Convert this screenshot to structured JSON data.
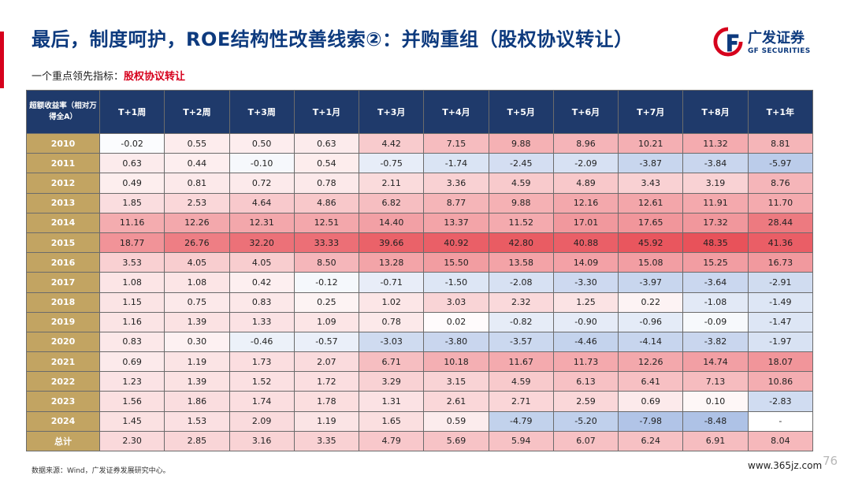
{
  "header": {
    "title": "最后，制度呵护，ROE结构性改善线索②：并购重组（股权协议转让）",
    "subtitle_prefix": "一个重点领先指标：",
    "subtitle_highlight": "股权协议转让"
  },
  "logo": {
    "name_cn": "广发证券",
    "name_en": "GF SECURITIES",
    "icon": "gf-logo-icon"
  },
  "table": {
    "corner_header": "超额收益率（相对万得全A）",
    "columns": [
      "T+1周",
      "T+2周",
      "T+3周",
      "T+1月",
      "T+3月",
      "T+4月",
      "T+5月",
      "T+6月",
      "T+7月",
      "T+8月",
      "T+1年"
    ],
    "rows": [
      {
        "label": "2010",
        "values": [
          "-0.02",
          "0.55",
          "0.50",
          "0.63",
          "4.42",
          "7.15",
          "9.88",
          "8.96",
          "10.21",
          "11.32",
          "8.81"
        ]
      },
      {
        "label": "2011",
        "values": [
          "0.63",
          "0.44",
          "-0.10",
          "0.54",
          "-0.75",
          "-1.74",
          "-2.45",
          "-2.09",
          "-3.87",
          "-3.84",
          "-5.97"
        ]
      },
      {
        "label": "2012",
        "values": [
          "0.49",
          "0.81",
          "0.72",
          "0.78",
          "2.11",
          "3.36",
          "4.59",
          "4.89",
          "3.43",
          "3.19",
          "8.76"
        ]
      },
      {
        "label": "2013",
        "values": [
          "1.85",
          "2.53",
          "4.64",
          "4.86",
          "6.82",
          "8.77",
          "9.88",
          "12.16",
          "12.61",
          "11.91",
          "11.70"
        ]
      },
      {
        "label": "2014",
        "values": [
          "11.16",
          "12.26",
          "12.31",
          "12.51",
          "14.40",
          "13.37",
          "11.52",
          "17.01",
          "17.65",
          "17.32",
          "28.44"
        ]
      },
      {
        "label": "2015",
        "values": [
          "18.77",
          "26.76",
          "32.20",
          "33.33",
          "39.66",
          "40.92",
          "42.80",
          "40.88",
          "45.92",
          "48.35",
          "41.36"
        ]
      },
      {
        "label": "2016",
        "values": [
          "3.53",
          "4.05",
          "4.05",
          "8.50",
          "13.28",
          "15.50",
          "13.58",
          "14.09",
          "15.08",
          "15.25",
          "16.73"
        ]
      },
      {
        "label": "2017",
        "values": [
          "1.08",
          "1.08",
          "0.42",
          "-0.12",
          "-0.71",
          "-1.50",
          "-2.08",
          "-3.30",
          "-3.97",
          "-3.64",
          "-2.91"
        ]
      },
      {
        "label": "2018",
        "values": [
          "1.15",
          "0.75",
          "0.83",
          "0.25",
          "1.02",
          "3.03",
          "2.32",
          "1.25",
          "0.22",
          "-1.08",
          "-1.49"
        ]
      },
      {
        "label": "2019",
        "values": [
          "1.16",
          "1.39",
          "1.33",
          "1.09",
          "0.78",
          "0.02",
          "-0.82",
          "-0.90",
          "-0.96",
          "-0.09",
          "-1.47"
        ]
      },
      {
        "label": "2020",
        "values": [
          "0.83",
          "0.30",
          "-0.46",
          "-0.57",
          "-3.03",
          "-3.80",
          "-3.57",
          "-4.46",
          "-4.14",
          "-3.82",
          "-1.97"
        ]
      },
      {
        "label": "2021",
        "values": [
          "0.69",
          "1.19",
          "1.73",
          "2.07",
          "6.71",
          "10.18",
          "11.67",
          "11.73",
          "12.26",
          "14.74",
          "18.07"
        ]
      },
      {
        "label": "2022",
        "values": [
          "1.23",
          "1.39",
          "1.52",
          "1.72",
          "3.29",
          "3.15",
          "4.59",
          "6.13",
          "6.41",
          "7.13",
          "10.86"
        ]
      },
      {
        "label": "2023",
        "values": [
          "1.56",
          "1.86",
          "1.74",
          "1.78",
          "1.31",
          "2.61",
          "2.71",
          "2.59",
          "0.69",
          "0.10",
          "-2.83"
        ]
      },
      {
        "label": "2024",
        "values": [
          "1.45",
          "1.53",
          "2.09",
          "1.19",
          "1.65",
          "0.59",
          "-4.79",
          "-5.20",
          "-7.98",
          "-8.48",
          "-"
        ]
      },
      {
        "label": "总计",
        "values": [
          "2.30",
          "2.85",
          "3.16",
          "3.35",
          "4.79",
          "5.69",
          "5.94",
          "6.07",
          "6.24",
          "6.91",
          "8.04"
        ]
      }
    ],
    "colors": {
      "header_bg": "#1f3a6b",
      "year_bg": "#c2a462",
      "positive": "#e8525a",
      "negative": "#3f6fc4"
    }
  },
  "footer": {
    "source": "数据来源：Wind，广发证券发展研究中心。",
    "page_number": "76",
    "watermark": "www.365jz.com"
  }
}
